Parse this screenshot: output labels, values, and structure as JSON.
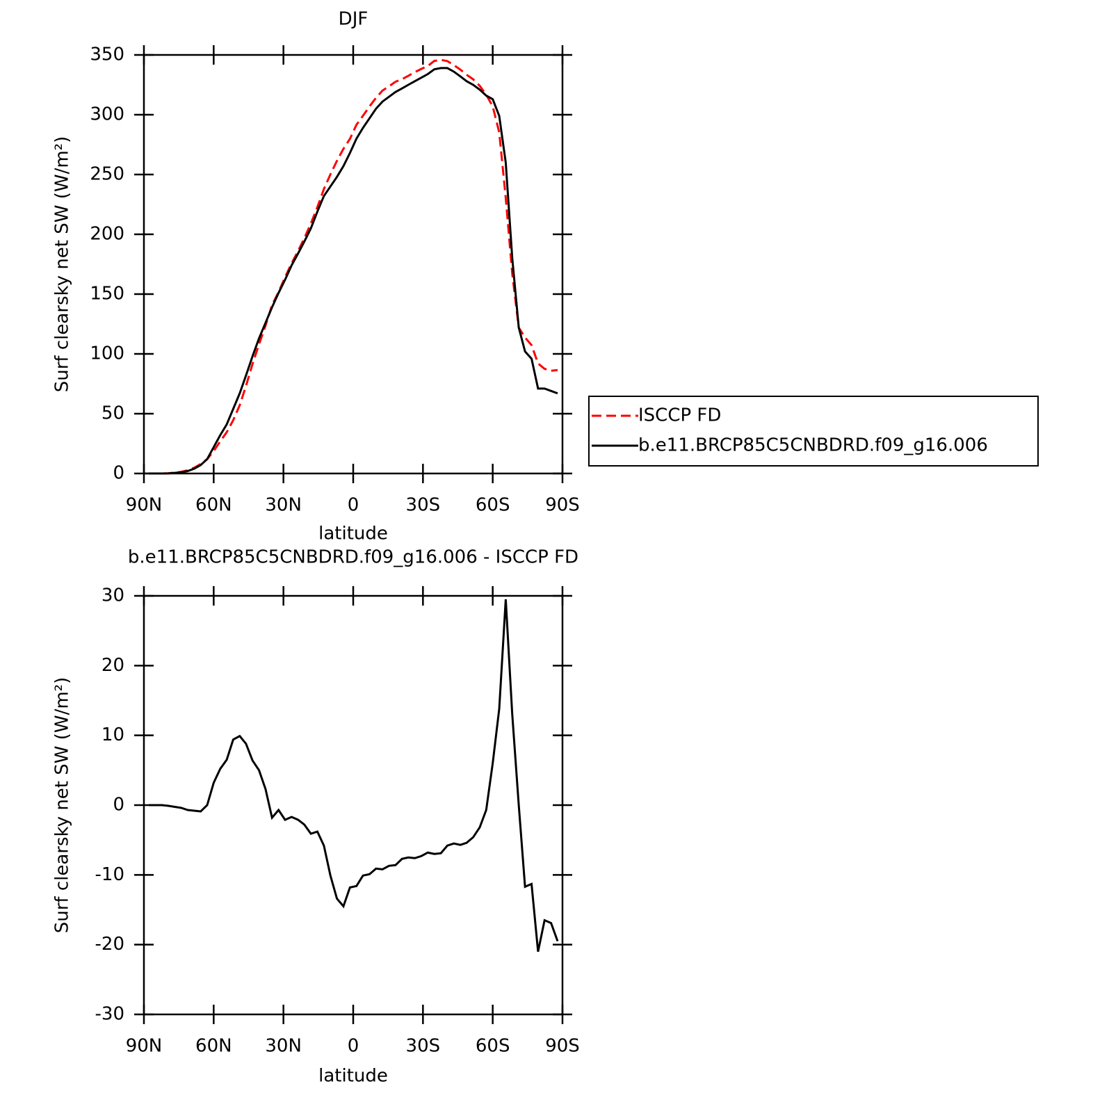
{
  "chart_data": [
    {
      "type": "line",
      "title": "DJF",
      "x_label": "latitude",
      "y_label": "Surf clearsky net SW (W/m²)",
      "x": [
        87.9,
        85.1,
        82.3,
        79.5,
        76.7,
        73.9,
        71.2,
        68.4,
        65.6,
        62.8,
        60.0,
        57.2,
        54.4,
        51.6,
        48.8,
        46.1,
        43.3,
        40.5,
        37.7,
        34.9,
        32.1,
        29.3,
        26.5,
        23.7,
        21.0,
        18.2,
        15.4,
        12.6,
        9.8,
        7.0,
        4.2,
        1.4,
        -1.4,
        -4.2,
        -7.0,
        -9.8,
        -12.6,
        -15.4,
        -18.2,
        -21.0,
        -23.7,
        -26.5,
        -29.3,
        -32.1,
        -34.9,
        -37.7,
        -40.5,
        -43.3,
        -46.1,
        -48.8,
        -51.6,
        -54.4,
        -57.2,
        -60.0,
        -62.8,
        -65.6,
        -68.4,
        -71.2,
        -73.9,
        -76.7,
        -79.5,
        -82.3,
        -85.1,
        -87.9
      ],
      "series": [
        {
          "name": "ISCCP FD",
          "color": "#ff0000",
          "dashed": true,
          "values": [
            0,
            0,
            0,
            0.2,
            0.75,
            1.4,
            2.7,
            4.8,
            7.9,
            12,
            18.8,
            26.8,
            34.5,
            44.6,
            57.1,
            73.2,
            91.6,
            108,
            123.7,
            140.8,
            151.7,
            164.1,
            175.7,
            186.1,
            196.8,
            209.1,
            222.8,
            237.8,
            250.1,
            261.4,
            271.5,
            279.8,
            291.6,
            299.1,
            306.9,
            314.1,
            320.2,
            323.7,
            327.6,
            329.7,
            332.5,
            335.6,
            338.3,
            340.8,
            345,
            345.9,
            344.8,
            341.5,
            337.7,
            333.4,
            329.6,
            324.2,
            316.7,
            307,
            285.2,
            230.5,
            167,
            122,
            113.7,
            107.3,
            92,
            87.5,
            85.9,
            86.5
          ]
        },
        {
          "name": "b.e11.BRCP85C5CNBDRD.f09_g16.006",
          "color": "#000000",
          "dashed": false,
          "values": [
            0,
            0,
            0,
            0.1,
            0.5,
            1,
            2,
            4,
            7,
            12,
            22,
            32,
            41,
            54,
            67,
            82,
            98,
            113,
            126,
            139,
            151,
            162,
            174,
            184,
            194,
            205,
            219,
            232,
            240,
            248,
            257,
            268,
            280,
            289,
            297,
            305,
            311,
            315,
            319,
            322,
            325,
            328,
            331,
            334,
            338,
            339,
            339,
            336,
            332,
            328,
            325,
            321,
            316,
            313,
            299,
            260,
            180,
            122,
            102,
            96,
            71,
            71,
            69,
            67
          ]
        }
      ],
      "xlim": [
        90,
        -90
      ],
      "xticks": [
        {
          "value": 90,
          "label": "90N"
        },
        {
          "value": 60,
          "label": "60N"
        },
        {
          "value": 30,
          "label": "30N"
        },
        0,
        {
          "value": -30,
          "label": "30S"
        },
        {
          "value": -60,
          "label": "60S"
        },
        {
          "value": -90,
          "label": "90S"
        }
      ],
      "ylim": [
        0,
        350
      ],
      "yticks": [
        0,
        50,
        100,
        150,
        200,
        250,
        300,
        350
      ],
      "legend": "right"
    },
    {
      "type": "line",
      "title": "b.e11.BRCP85C5CNBDRD.f09_g16.006 - ISCCP FD",
      "x_label": "latitude",
      "y_label": "Surf clearsky net SW (W/m²)",
      "x": [
        87.9,
        85.1,
        82.3,
        79.5,
        76.7,
        73.9,
        71.2,
        68.4,
        65.6,
        62.8,
        60.0,
        57.2,
        54.4,
        51.6,
        48.8,
        46.1,
        43.3,
        40.5,
        37.7,
        34.9,
        32.1,
        29.3,
        26.5,
        23.7,
        21.0,
        18.2,
        15.4,
        12.6,
        9.8,
        7.0,
        4.2,
        1.4,
        -1.4,
        -4.2,
        -7.0,
        -9.8,
        -12.6,
        -15.4,
        -18.2,
        -21.0,
        -23.7,
        -26.5,
        -29.3,
        -32.1,
        -34.9,
        -37.7,
        -40.5,
        -43.3,
        -46.1,
        -48.8,
        -51.6,
        -54.4,
        -57.2,
        -60.0,
        -62.8,
        -65.6,
        -68.4,
        -71.2,
        -73.9,
        -76.7,
        -79.5,
        -82.3,
        -85.1,
        -87.9
      ],
      "series": [
        {
          "color": "#000000",
          "dashed": false,
          "values": [
            0,
            0,
            0,
            -0.1,
            -0.25,
            -0.4,
            -0.7,
            -0.8,
            -0.9,
            0,
            3.2,
            5.2,
            6.5,
            9.4,
            9.9,
            8.8,
            6.4,
            5.0,
            2.3,
            -1.8,
            -0.7,
            -2.1,
            -1.7,
            -2.1,
            -2.8,
            -4.1,
            -3.8,
            -5.8,
            -10.1,
            -13.4,
            -14.5,
            -11.8,
            -11.6,
            -10.1,
            -9.9,
            -9.1,
            -9.2,
            -8.7,
            -8.6,
            -7.7,
            -7.5,
            -7.6,
            -7.3,
            -6.8,
            -7.0,
            -6.9,
            -5.8,
            -5.5,
            -5.7,
            -5.4,
            -4.6,
            -3.2,
            -0.7,
            6.0,
            13.8,
            29.5,
            13.0,
            0,
            -11.7,
            -11.3,
            -21.0,
            -16.5,
            -16.9,
            -19.5
          ]
        }
      ],
      "xlim": [
        90,
        -90
      ],
      "xticks": [
        {
          "value": 90,
          "label": "90N"
        },
        {
          "value": 60,
          "label": "60N"
        },
        {
          "value": 30,
          "label": "30N"
        },
        0,
        {
          "value": -30,
          "label": "30S"
        },
        {
          "value": -60,
          "label": "60S"
        },
        {
          "value": -90,
          "label": "90S"
        }
      ],
      "ylim": [
        -30,
        30
      ],
      "yticks": [
        -30,
        -20,
        -10,
        0,
        10,
        20,
        30
      ]
    }
  ]
}
